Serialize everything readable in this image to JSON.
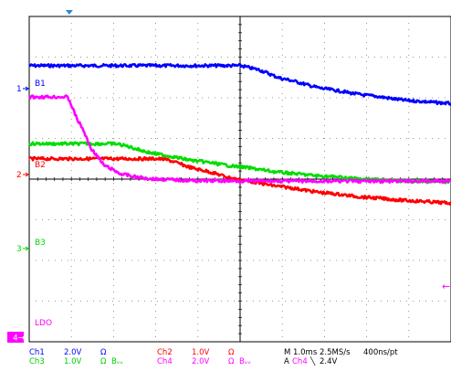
{
  "chart_data": {
    "type": "line",
    "title": "",
    "xlabel": "",
    "ylabel": "",
    "grid": true,
    "x_divisions": 10,
    "y_divisions": 8,
    "x_range_ms": [
      0,
      10
    ],
    "series": [
      {
        "name": "B1",
        "channel": "Ch1",
        "marker": "1",
        "color": "#0000ff",
        "x": [
          0,
          1,
          2,
          3,
          4,
          5,
          5.4,
          6,
          7,
          8,
          9,
          10
        ],
        "y": [
          2.79,
          2.79,
          2.79,
          2.79,
          2.79,
          2.79,
          2.7,
          2.47,
          2.22,
          2.06,
          1.93,
          1.86
        ]
      },
      {
        "name": "B2",
        "channel": "Ch2",
        "marker": "2",
        "color": "#ff0000",
        "x": [
          0,
          1,
          2,
          3,
          3.2,
          4,
          5,
          6,
          7,
          8,
          9,
          10
        ],
        "y": [
          0.5,
          0.5,
          0.5,
          0.5,
          0.49,
          0.24,
          -0.02,
          -0.19,
          -0.34,
          -0.45,
          -0.53,
          -0.59
        ]
      },
      {
        "name": "B3",
        "channel": "Ch3",
        "marker": "3",
        "color": "#00dd00",
        "x": [
          0,
          1,
          2,
          2.1,
          3,
          4,
          5,
          6,
          7,
          8,
          9,
          10
        ],
        "y": [
          0.87,
          0.87,
          0.87,
          0.86,
          0.62,
          0.44,
          0.3,
          0.16,
          0.07,
          0.0,
          -0.05,
          -0.07
        ]
      },
      {
        "name": "LDO",
        "channel": "Ch4",
        "marker": "4",
        "color": "#ff00ff",
        "x": [
          0,
          0.5,
          0.9,
          1.2,
          1.5,
          1.8,
          2.2,
          2.6,
          3,
          4,
          6,
          8,
          10
        ],
        "y": [
          2.02,
          2.02,
          2.02,
          1.36,
          0.7,
          0.32,
          0.12,
          0.04,
          0.0,
          -0.04,
          -0.05,
          -0.05,
          -0.05
        ]
      }
    ],
    "markers_right": [
      {
        "label": "←",
        "color": "#ff00ff"
      }
    ]
  },
  "readout": {
    "row1": [
      {
        "text": "Ch1",
        "color": "#0000ff"
      },
      {
        "text": "2.0V",
        "color": "#0000ff"
      },
      {
        "text": "Ω",
        "color": "#0000ff"
      },
      {
        "text": "Ch2",
        "color": "#ff0000"
      },
      {
        "text": "1.0V",
        "color": "#ff0000"
      },
      {
        "text": "Ω",
        "color": "#ff0000"
      },
      {
        "text": "M 1.0ms 2.5MS/s",
        "color": "#000000"
      },
      {
        "text": "400ns/pt",
        "color": "#000000"
      }
    ],
    "row2": [
      {
        "text": "Ch3",
        "color": "#00cc00"
      },
      {
        "text": "1.0V",
        "color": "#00cc00"
      },
      {
        "text": "Ω",
        "color": "#00cc00"
      },
      {
        "text": "Bᵥᵥ",
        "color": "#00cc00"
      },
      {
        "text": "Ch4",
        "color": "#ff00ff"
      },
      {
        "text": "2.0V",
        "color": "#ff00ff"
      },
      {
        "text": "Ω",
        "color": "#ff00ff"
      },
      {
        "text": "Bᵥᵥ",
        "color": "#ff00ff"
      },
      {
        "text": "A",
        "color": "#000000"
      },
      {
        "text": "Ch4",
        "color": "#ff00ff"
      },
      {
        "text": "╲",
        "color": "#000000"
      },
      {
        "text": "2.4V",
        "color": "#000000"
      }
    ]
  }
}
